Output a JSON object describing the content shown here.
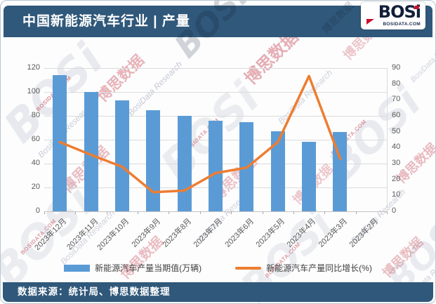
{
  "header": {
    "title": "中国新能源汽车行业 | 产量",
    "logo": {
      "brand": "BOSi",
      "domain": "BOSIDATA.COM"
    }
  },
  "footer": {
    "source": "数据来源：统计局、博思数据整理"
  },
  "chart_data": {
    "type": "bar",
    "title": "中国新能源汽车行业 | 产量",
    "categories": [
      "2023年12月",
      "2023年11月",
      "2023年10月",
      "2023年9月",
      "2023年8月",
      "2023年7月",
      "2023年6月",
      "2023年5月",
      "2023年4月",
      "2023年3月",
      "2023年2月"
    ],
    "series": [
      {
        "name": "新能源汽车产量当期值(万辆)",
        "type": "bar",
        "axis": "left",
        "color": "#5B9BD5",
        "values": [
          114,
          100,
          93,
          85,
          80,
          76,
          75,
          67,
          58,
          66.5,
          null
        ]
      },
      {
        "name": "新能源汽车产量同比增长(%)",
        "type": "line",
        "axis": "right",
        "color": "#ED7D31",
        "values": [
          43.5,
          35.5,
          28,
          12,
          13,
          24,
          27.5,
          43.5,
          85,
          33,
          null
        ]
      }
    ],
    "left_axis": {
      "min": 0,
      "max": 120,
      "step": 20
    },
    "right_axis": {
      "min": 0,
      "max": 90,
      "step": 10
    },
    "grid": true,
    "legend_position": "bottom"
  },
  "watermarks": {
    "cn": "博思数据",
    "en": "BosiData Research",
    "brand": "BOSi",
    "site": "BOSIDATA.COM"
  },
  "colors": {
    "bar": "#5B9BD5",
    "line": "#ED7D31",
    "header_bg": "#30587A",
    "axis_text": "#595959",
    "grid": "#DBDBDB"
  }
}
